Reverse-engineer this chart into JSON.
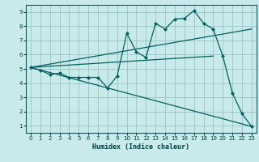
{
  "xlabel": "Humidex (Indice chaleur)",
  "background_color": "#c8eaea",
  "grid_color": "#a0c8c8",
  "line_color": "#006060",
  "tick_color": "#004040",
  "xlim": [
    -0.5,
    23.5
  ],
  "ylim": [
    0.5,
    9.5
  ],
  "xticks": [
    0,
    1,
    2,
    3,
    4,
    5,
    6,
    7,
    8,
    9,
    10,
    11,
    12,
    13,
    14,
    15,
    16,
    17,
    18,
    19,
    20,
    21,
    22,
    23
  ],
  "yticks": [
    1,
    2,
    3,
    4,
    5,
    6,
    7,
    8,
    9
  ],
  "series": [
    {
      "x": [
        0,
        1,
        2,
        3,
        4,
        5,
        6,
        7,
        8,
        9,
        10,
        11,
        12,
        13,
        14,
        15,
        16,
        17,
        18,
        19,
        20,
        21,
        22,
        23
      ],
      "y": [
        5.1,
        4.9,
        4.6,
        4.7,
        4.4,
        4.4,
        4.4,
        4.4,
        3.65,
        4.5,
        7.5,
        6.2,
        5.8,
        8.2,
        7.8,
        8.5,
        8.55,
        9.1,
        8.2,
        7.8,
        5.9,
        3.3,
        1.85,
        0.95
      ],
      "marker": true
    },
    {
      "x": [
        0,
        23
      ],
      "y": [
        5.1,
        0.95
      ],
      "marker": false
    },
    {
      "x": [
        0,
        23
      ],
      "y": [
        5.1,
        7.8
      ],
      "marker": false
    },
    {
      "x": [
        0,
        19
      ],
      "y": [
        5.1,
        5.9
      ],
      "marker": false
    }
  ]
}
